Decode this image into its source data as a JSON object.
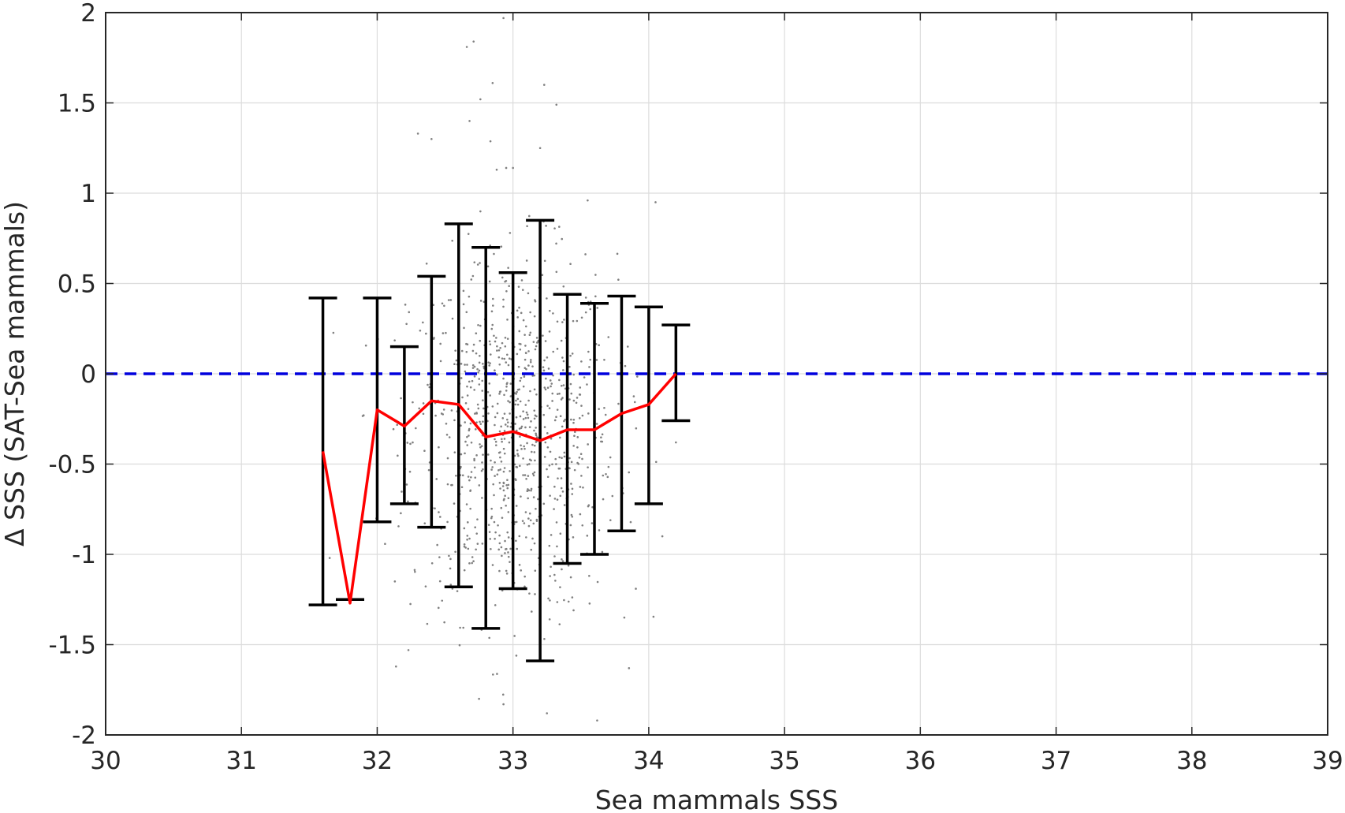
{
  "chart_data": {
    "type": "scatter",
    "xlabel": "Sea mammals SSS",
    "ylabel": "Δ SSS (SAT-Sea mammals)",
    "xlim": [
      30,
      39
    ],
    "ylim": [
      -2,
      2
    ],
    "xticks": [
      "30",
      "31",
      "32",
      "33",
      "34",
      "35",
      "36",
      "37",
      "38",
      "39"
    ],
    "yticks": [
      "2",
      "1.5",
      "1",
      "0.5",
      "0",
      "-0.5",
      "-1",
      "-1.5",
      "-2"
    ],
    "grid": true,
    "colors": {
      "mean_line": "#ff0000",
      "error_bars": "#000000",
      "zero_line": "#0000dd",
      "scatter": "#808080",
      "grid": "#dcdcdc"
    },
    "series": [
      {
        "type": "errorbar",
        "x": [
          31.6,
          31.8,
          32.0,
          32.2,
          32.4,
          32.6,
          32.8,
          33.0,
          33.2,
          33.4,
          33.6,
          33.8,
          34.0,
          34.2
        ],
        "mean": [
          -0.43,
          -1.27,
          -0.2,
          -0.29,
          -0.15,
          -0.17,
          -0.35,
          -0.32,
          -0.37,
          -0.31,
          -0.31,
          -0.22,
          -0.17,
          0.0
        ],
        "upper": [
          0.42,
          -1.25,
          0.42,
          0.15,
          0.54,
          0.83,
          0.7,
          0.56,
          0.85,
          0.44,
          0.39,
          0.43,
          0.37,
          0.27
        ],
        "lower": [
          -1.28,
          -1.25,
          -0.82,
          -0.72,
          -0.85,
          -1.18,
          -1.41,
          -1.19,
          -1.59,
          -1.05,
          -1.0,
          -0.87,
          -0.72,
          -0.26
        ]
      },
      {
        "type": "hline",
        "y": 0,
        "style": "dashed"
      },
      {
        "type": "scatter",
        "x_range": [
          31.5,
          34.4
        ],
        "x_center": 33.0,
        "y_center": -0.35,
        "count": 900,
        "points_sample": [
          [
            32.93,
            1.97
          ],
          [
            32.71,
            1.84
          ],
          [
            32.66,
            1.81
          ],
          [
            32.85,
            1.61
          ],
          [
            33.23,
            1.6
          ],
          [
            32.76,
            1.52
          ],
          [
            33.32,
            1.49
          ],
          [
            32.68,
            1.4
          ],
          [
            32.3,
            1.33
          ],
          [
            32.4,
            1.3
          ],
          [
            33.2,
            1.25
          ],
          [
            32.95,
            1.14
          ],
          [
            33.0,
            1.14
          ],
          [
            32.88,
            1.13
          ],
          [
            33.55,
            0.96
          ],
          [
            34.05,
            0.95
          ],
          [
            31.65,
            -1.02
          ],
          [
            32.13,
            -1.15
          ],
          [
            32.23,
            -1.53
          ],
          [
            32.75,
            -1.8
          ],
          [
            32.93,
            -1.83
          ],
          [
            33.25,
            -1.88
          ],
          [
            33.62,
            -1.92
          ],
          [
            34.2,
            -0.38
          ],
          [
            33.82,
            -1.35
          ],
          [
            34.1,
            -0.9
          ]
        ]
      }
    ]
  }
}
